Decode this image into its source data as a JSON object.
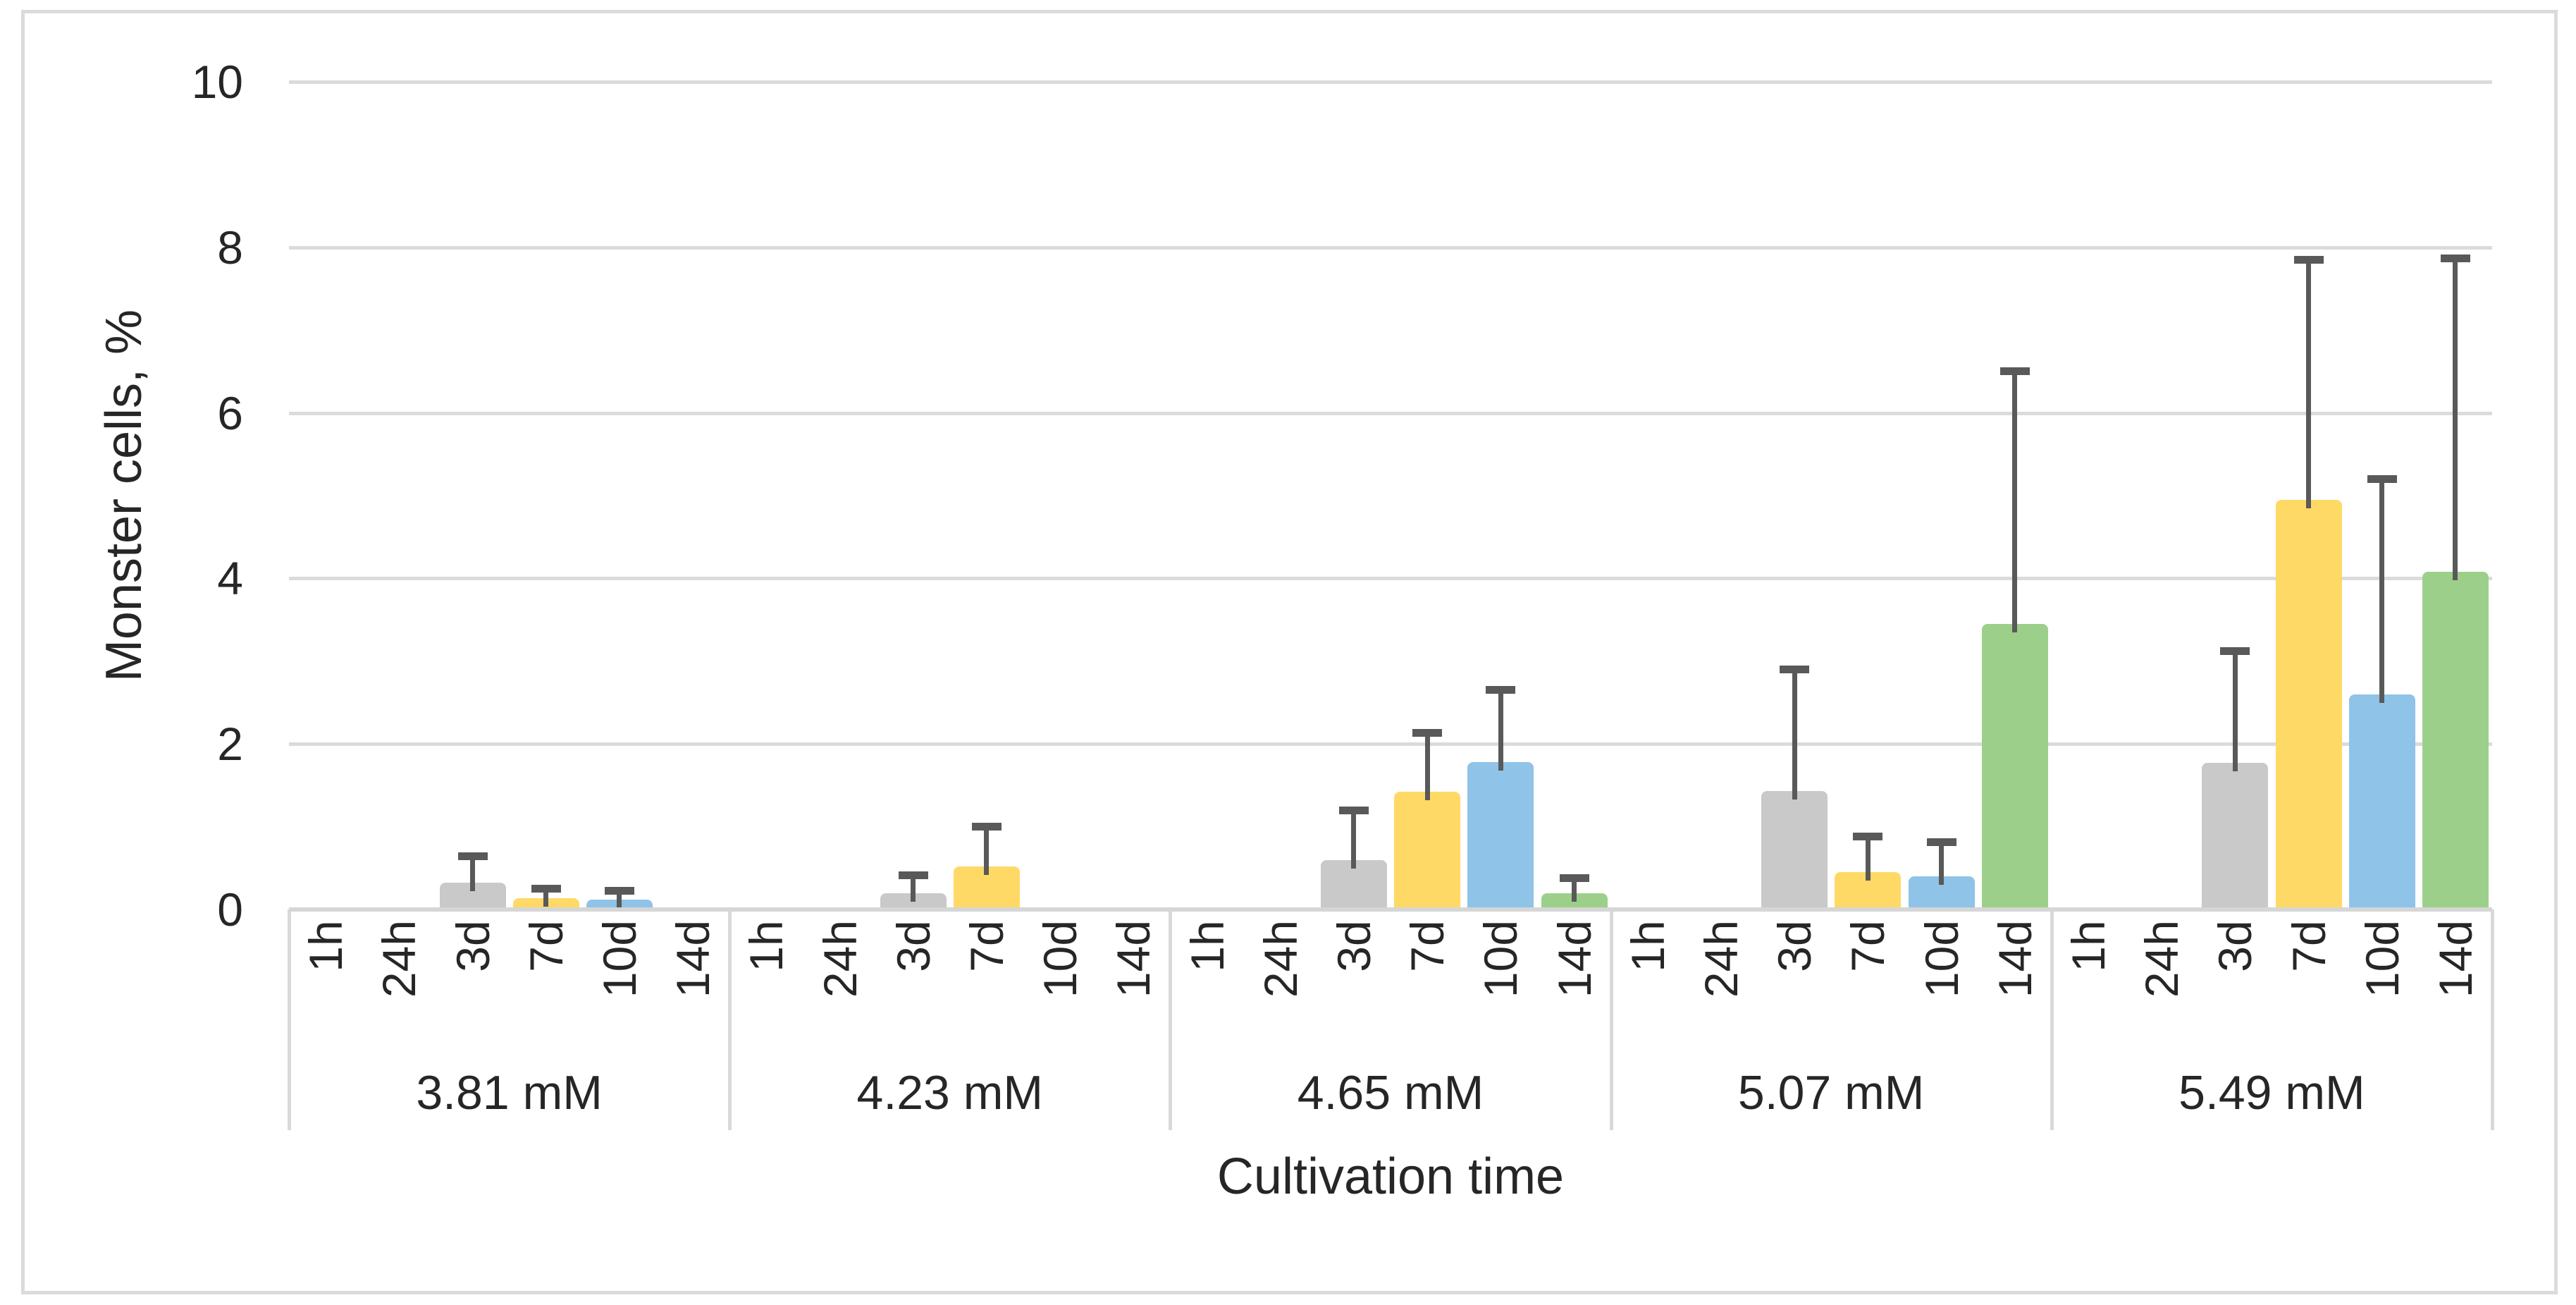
{
  "chart_data": {
    "type": "bar",
    "title": "",
    "ylabel": "Monster cells, %",
    "xlabel": "Cultivation time",
    "ylim": [
      0,
      10
    ],
    "yticks": [
      0,
      2,
      4,
      6,
      8,
      10
    ],
    "grid": true,
    "legend_position": "none",
    "group_labels": [
      "3.81 mM",
      "4.23 mM",
      "4.65 mM",
      "5.07 mM",
      "5.49 mM"
    ],
    "categories": [
      "1h",
      "24h",
      "3d",
      "7d",
      "10d",
      "14d"
    ],
    "series": [
      {
        "name": "1h",
        "color": null,
        "values": [
          0,
          0,
          0,
          0,
          0
        ],
        "error_plus": [
          0,
          0,
          0,
          0,
          0
        ]
      },
      {
        "name": "24h",
        "color": null,
        "values": [
          0,
          0,
          0,
          0,
          0
        ],
        "error_plus": [
          0,
          0,
          0,
          0,
          0
        ]
      },
      {
        "name": "3d",
        "color": "#C9C9C9",
        "values": [
          0.32,
          0.2,
          0.6,
          1.43,
          1.77
        ],
        "error_plus": [
          0.32,
          0.21,
          0.6,
          1.47,
          1.35
        ]
      },
      {
        "name": "7d",
        "color": "#FFD966",
        "values": [
          0.14,
          0.52,
          1.42,
          0.45,
          4.95
        ],
        "error_plus": [
          0.11,
          0.48,
          0.71,
          0.43,
          2.9
        ]
      },
      {
        "name": "10d",
        "color": "#8FC3E8",
        "values": [
          0.12,
          0,
          1.78,
          0.4,
          2.6
        ],
        "error_plus": [
          0.11,
          0,
          0.87,
          0.41,
          2.6
        ]
      },
      {
        "name": "14d",
        "color": "#9CD08A",
        "values": [
          0,
          0,
          0.2,
          3.45,
          4.08
        ],
        "error_plus": [
          0,
          0,
          0.18,
          3.05,
          3.79
        ]
      }
    ],
    "colors": {
      "error_bar": "#595959",
      "gridline": "#dbdbdb",
      "axis_line": "#d6d6d6",
      "separator": "#d9d9d9",
      "text": "#262626",
      "background": "#ffffff",
      "border": "#dbdbdb"
    }
  }
}
